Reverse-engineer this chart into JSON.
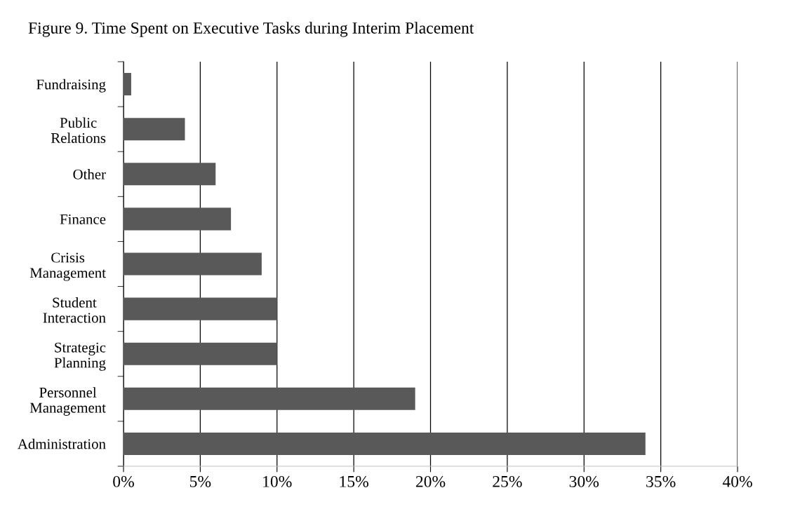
{
  "chart_data": {
    "type": "bar",
    "orientation": "horizontal",
    "title": "Figure 9. Time Spent on Executive Tasks during Interim Placement",
    "categories": [
      "Fundraising",
      "Public\nRelations",
      "Other",
      "Finance",
      "Crisis\nManagement",
      "Student\nInteraction",
      "Strategic\nPlanning",
      "Personnel\nManagement",
      "Administration"
    ],
    "values": [
      0.5,
      4,
      6,
      7,
      9,
      10,
      10,
      19,
      34
    ],
    "color": "#595959",
    "xlim": [
      0,
      40
    ],
    "xticks": [
      {
        "value": 0,
        "label": "0%"
      },
      {
        "value": 5,
        "label": "5%"
      },
      {
        "value": 10,
        "label": "10%"
      },
      {
        "value": 15,
        "label": "15%"
      },
      {
        "value": 20,
        "label": "20%"
      },
      {
        "value": 25,
        "label": "25%"
      },
      {
        "value": 30,
        "label": "30%"
      },
      {
        "value": 35,
        "label": "35%"
      },
      {
        "value": 40,
        "label": "40%"
      }
    ],
    "grid": "x",
    "legend": false
  }
}
